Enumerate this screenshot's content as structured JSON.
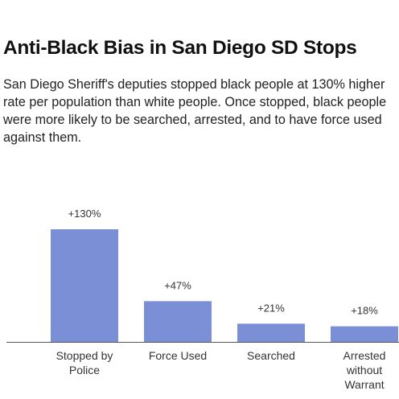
{
  "title": "Anti-Black Bias in San Diego SD Stops",
  "subtitle": "San Diego Sheriff's deputies stopped black people at 130% higher rate per population than white people. Once stopped, black people were more likely to be searched, arrested, and to have force used against them.",
  "colors": {
    "bar": "#7b8fd6",
    "axis": "#555555",
    "label_text": "#333333"
  },
  "chart_data": {
    "type": "bar",
    "title": "",
    "xlabel": "",
    "ylabel": "",
    "categories": [
      [
        "Stopped by",
        "Police"
      ],
      [
        "Force Used"
      ],
      [
        "Searched"
      ],
      [
        "Arrested",
        "without",
        "Warrant"
      ]
    ],
    "values": [
      130,
      47,
      21,
      18
    ],
    "data_labels": [
      "+130%",
      "+47%",
      "+21%",
      "+18%"
    ],
    "ylim": [
      0,
      130
    ],
    "unit": "%",
    "grid": false,
    "legend": "none"
  }
}
